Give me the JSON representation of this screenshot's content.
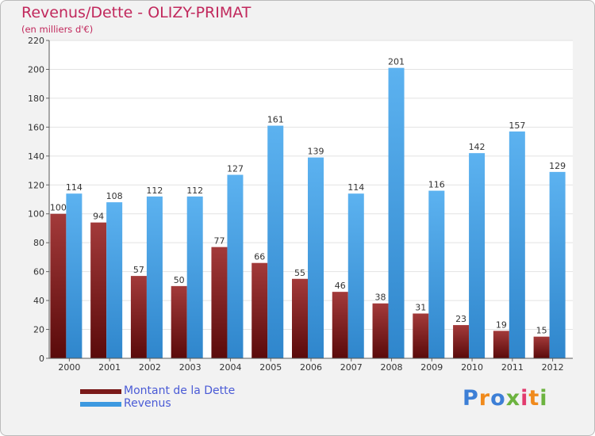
{
  "chart_data": {
    "type": "bar",
    "title": "Revenus/Dette - OLIZY-PRIMAT",
    "subtitle": "(en milliers d'€)",
    "categories": [
      "2000",
      "2001",
      "2002",
      "2003",
      "2004",
      "2005",
      "2006",
      "2007",
      "2008",
      "2009",
      "2010",
      "2011",
      "2012"
    ],
    "series": [
      {
        "name": "Montant de la Dette",
        "color": "#7a1a1a",
        "values": [
          100,
          94,
          57,
          50,
          77,
          66,
          55,
          46,
          38,
          31,
          23,
          19,
          15
        ]
      },
      {
        "name": "Revenus",
        "color": "#3d99e0",
        "values": [
          114,
          108,
          112,
          112,
          127,
          161,
          139,
          114,
          201,
          116,
          142,
          157,
          129
        ]
      }
    ],
    "ylim": [
      0,
      220
    ],
    "yticks": [
      0,
      20,
      40,
      60,
      80,
      100,
      120,
      140,
      160,
      180,
      200,
      220
    ],
    "grid": true,
    "legend": "bottom-left"
  },
  "branding": {
    "letters": [
      {
        "ch": "P",
        "color": "#3d7fd6"
      },
      {
        "ch": "r",
        "color": "#f08a1c"
      },
      {
        "ch": "o",
        "color": "#3d7fd6"
      },
      {
        "ch": "x",
        "color": "#6cb33f"
      },
      {
        "ch": "i",
        "color": "#e23b6e"
      },
      {
        "ch": "t",
        "color": "#f08a1c"
      },
      {
        "ch": "i",
        "color": "#6cb33f"
      }
    ]
  }
}
